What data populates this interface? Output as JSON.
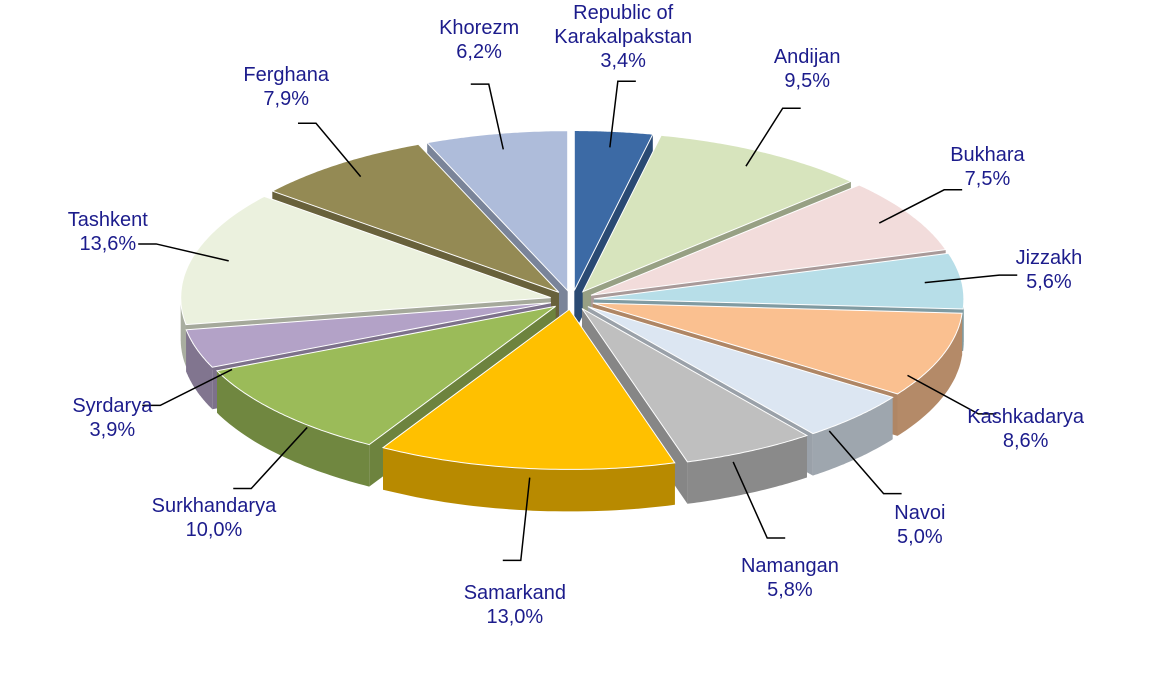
{
  "chart_data": {
    "type": "pie",
    "categories": [
      "Republic of Karakalpakstan",
      "Andijan",
      "Bukhara",
      "Jizzakh",
      "Kashkadarya",
      "Navoi",
      "Namangan",
      "Samarkand",
      "Surkhandarya",
      "Syrdarya",
      "Tashkent",
      "Ferghana",
      "Khorezm"
    ],
    "values": [
      3.4,
      9.5,
      7.5,
      5.6,
      8.6,
      5.0,
      5.8,
      13.0,
      10.0,
      3.9,
      13.6,
      7.9,
      6.2
    ],
    "value_labels": [
      "3,4%",
      "9,5%",
      "7,5%",
      "5,6%",
      "8,6%",
      "5,0%",
      "5,8%",
      "13,0%",
      "10,0%",
      "3,9%",
      "13,6%",
      "7,9%",
      "6,2%"
    ],
    "colors": [
      "#3c6aa5",
      "#d7e4bd",
      "#f2dcdb",
      "#b7dee8",
      "#fac090",
      "#dce6f2",
      "#bfbfbf",
      "#ffc000",
      "#9bbb59",
      "#b3a2c7",
      "#ebf1de",
      "#948a54",
      "#aebcda"
    ]
  }
}
